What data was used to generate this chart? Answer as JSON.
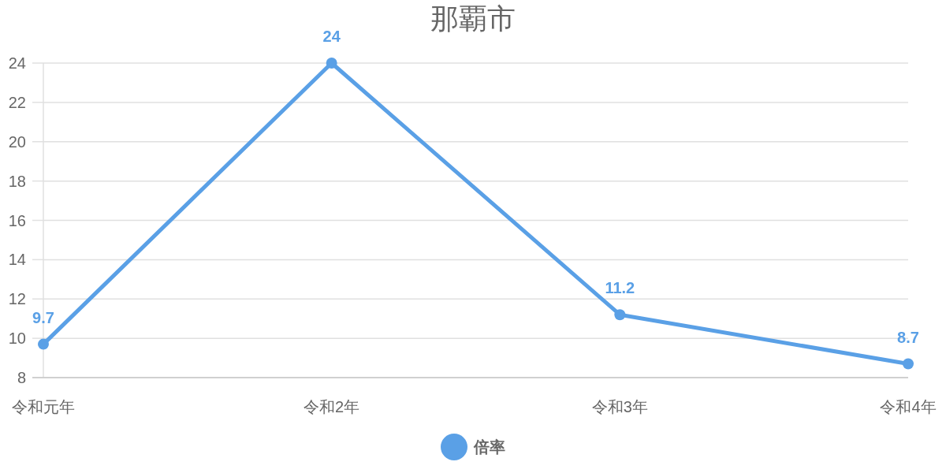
{
  "chart_data": {
    "type": "line",
    "title": "那覇市",
    "categories": [
      "令和元年",
      "令和2年",
      "令和3年",
      "令和4年"
    ],
    "series": [
      {
        "name": "倍率",
        "color": "#5aa0e6",
        "values": [
          9.7,
          24,
          11.2,
          8.7
        ]
      }
    ],
    "ylim": [
      8,
      24
    ],
    "yticks": [
      8,
      10,
      12,
      14,
      16,
      18,
      20,
      22,
      24
    ],
    "grid": "y",
    "legend": "bottom",
    "marker": "circle",
    "data_labels": true
  }
}
